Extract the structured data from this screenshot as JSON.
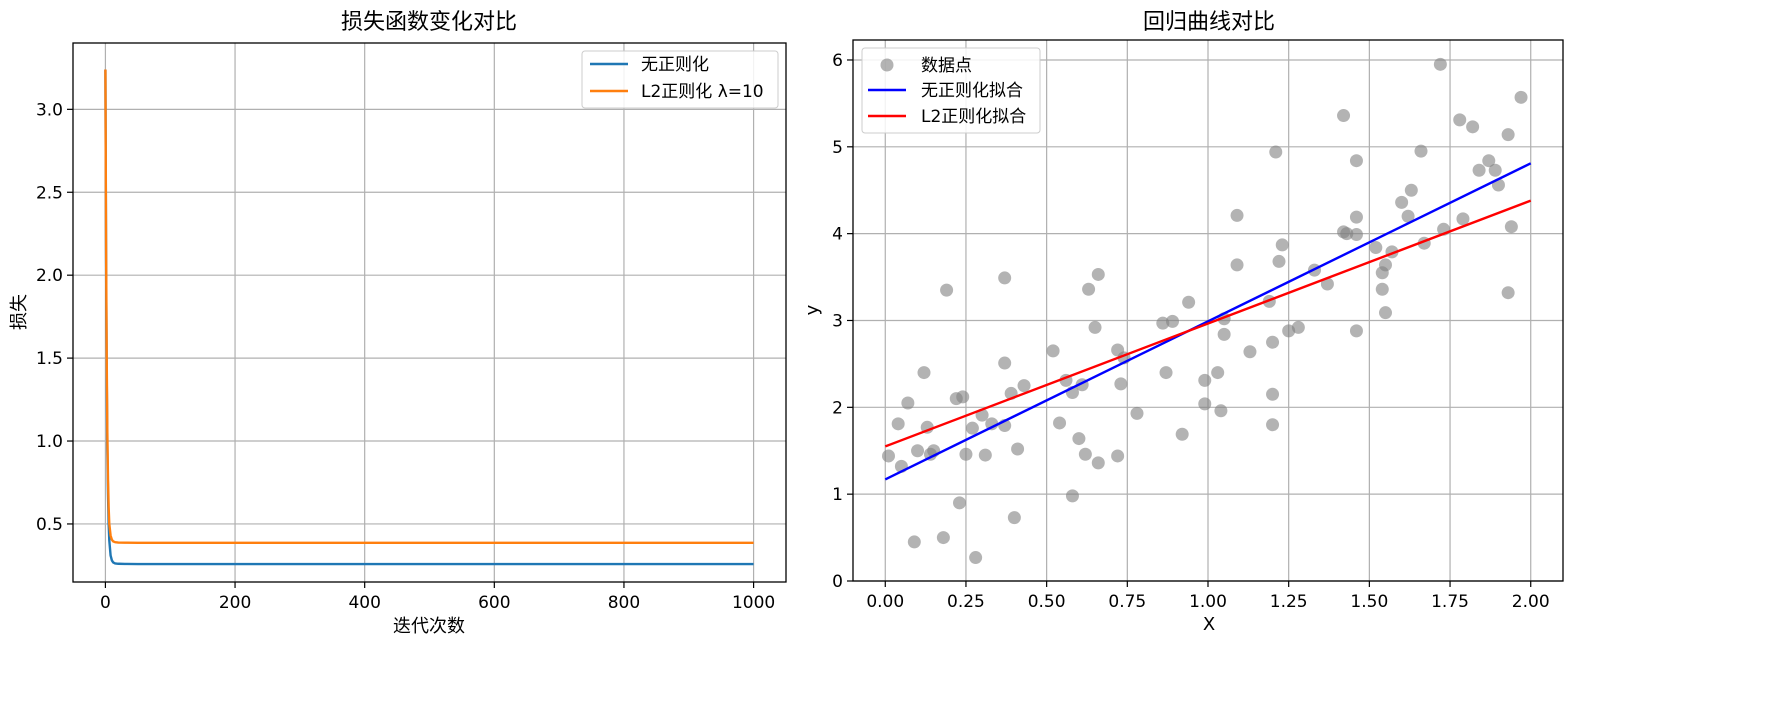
{
  "chart_data": [
    {
      "type": "line",
      "title": "损失函数变化对比",
      "xlabel": "迭代次数",
      "ylabel": "损失",
      "xlim": [
        -50,
        1050
      ],
      "ylim": [
        0.15,
        3.4
      ],
      "xticks": [
        0,
        200,
        400,
        600,
        800,
        1000
      ],
      "xtick_labels": [
        "0",
        "200",
        "400",
        "600",
        "800",
        "1000"
      ],
      "yticks": [
        0.5,
        1.0,
        1.5,
        2.0,
        2.5,
        3.0
      ],
      "ytick_labels": [
        "0.5",
        "1.0",
        "1.5",
        "2.0",
        "2.5",
        "3.0"
      ],
      "grid": true,
      "legend_position": "top-right",
      "series": [
        {
          "name": "无正则化",
          "color": "#1f77b4",
          "x": [
            0,
            1,
            2,
            3,
            4,
            5,
            6,
            8,
            10,
            12,
            15,
            20,
            30,
            50,
            100,
            200,
            1000
          ],
          "y": [
            3.24,
            2.1,
            1.4,
            0.95,
            0.68,
            0.5,
            0.4,
            0.31,
            0.28,
            0.268,
            0.262,
            0.26,
            0.259,
            0.258,
            0.258,
            0.258,
            0.258
          ]
        },
        {
          "name": "L2正则化 λ=10",
          "color": "#ff7f0e",
          "x": [
            0,
            1,
            2,
            3,
            4,
            5,
            6,
            8,
            10,
            12,
            15,
            20,
            30,
            50,
            100,
            200,
            1000
          ],
          "y": [
            3.24,
            2.2,
            1.5,
            1.05,
            0.77,
            0.6,
            0.5,
            0.43,
            0.405,
            0.395,
            0.39,
            0.388,
            0.387,
            0.386,
            0.386,
            0.386,
            0.386
          ]
        }
      ]
    },
    {
      "type": "scatter",
      "title": "回归曲线对比",
      "xlabel": "X",
      "ylabel": "y",
      "xlim": [
        -0.1,
        2.1
      ],
      "ylim": [
        0,
        6.23
      ],
      "xticks": [
        0,
        0.25,
        0.5,
        0.75,
        1.0,
        1.25,
        1.5,
        1.75,
        2.0
      ],
      "xtick_labels": [
        "0.00",
        "0.25",
        "0.50",
        "0.75",
        "1.00",
        "1.25",
        "1.50",
        "1.75",
        "2.00"
      ],
      "yticks": [
        0,
        1,
        2,
        3,
        4,
        5,
        6
      ],
      "ytick_labels": [
        "0",
        "1",
        "2",
        "3",
        "4",
        "5",
        "6"
      ],
      "grid": true,
      "legend_position": "top-left",
      "points": {
        "name": "数据点",
        "color": "#808080",
        "x": [
          0.01,
          0.04,
          0.05,
          0.07,
          0.09,
          0.1,
          0.12,
          0.13,
          0.14,
          0.15,
          0.18,
          0.19,
          0.22,
          0.23,
          0.24,
          0.25,
          0.27,
          0.28,
          0.3,
          0.31,
          0.33,
          0.37,
          0.37,
          0.37,
          0.39,
          0.4,
          0.41,
          0.43,
          0.52,
          0.54,
          0.56,
          0.58,
          0.58,
          0.6,
          0.61,
          0.62,
          0.63,
          0.65,
          0.66,
          0.66,
          0.72,
          0.72,
          0.73,
          0.74,
          0.78,
          0.86,
          0.87,
          0.89,
          0.92,
          0.94,
          0.99,
          0.99,
          1.03,
          1.04,
          1.05,
          1.05,
          1.09,
          1.09,
          1.13,
          1.19,
          1.2,
          1.2,
          1.2,
          1.21,
          1.22,
          1.23,
          1.25,
          1.28,
          1.33,
          1.37,
          1.42,
          1.42,
          1.43,
          1.46,
          1.46,
          1.46,
          1.46,
          1.52,
          1.54,
          1.54,
          1.55,
          1.55,
          1.57,
          1.6,
          1.62,
          1.63,
          1.66,
          1.67,
          1.72,
          1.73,
          1.78,
          1.79,
          1.82,
          1.84,
          1.87,
          1.89,
          1.9,
          1.93,
          1.93,
          1.94,
          1.97
        ],
        "y": [
          1.44,
          1.81,
          1.32,
          2.05,
          0.45,
          1.5,
          2.4,
          1.77,
          1.46,
          1.5,
          0.5,
          3.35,
          2.1,
          0.9,
          2.12,
          1.46,
          1.76,
          0.27,
          1.91,
          1.45,
          1.81,
          3.49,
          2.51,
          1.79,
          2.16,
          0.73,
          1.52,
          2.25,
          2.65,
          1.82,
          2.31,
          0.98,
          2.17,
          1.64,
          2.26,
          1.46,
          3.36,
          2.92,
          3.53,
          1.36,
          2.66,
          1.44,
          2.27,
          2.57,
          1.93,
          2.97,
          2.4,
          2.99,
          1.69,
          3.21,
          2.31,
          2.04,
          2.4,
          1.96,
          2.84,
          3.02,
          3.64,
          4.21,
          2.64,
          3.22,
          2.15,
          2.75,
          1.8,
          4.94,
          3.68,
          3.87,
          2.88,
          2.92,
          3.58,
          3.42,
          4.02,
          5.36,
          4.0,
          4.84,
          4.19,
          3.99,
          2.88,
          3.84,
          3.55,
          3.36,
          3.09,
          3.64,
          3.79,
          4.36,
          4.2,
          4.5,
          4.95,
          3.89,
          5.95,
          4.05,
          5.31,
          4.17,
          5.23,
          4.73,
          4.84,
          4.73,
          4.56,
          3.32,
          5.14,
          4.08,
          5.57
        ]
      },
      "series": [
        {
          "name": "无正则化拟合",
          "color": "#0000ff",
          "x": [
            0,
            2
          ],
          "y": [
            1.17,
            4.81
          ]
        },
        {
          "name": "L2正则化拟合",
          "color": "#ff0000",
          "x": [
            0,
            2
          ],
          "y": [
            1.55,
            4.38
          ]
        }
      ]
    }
  ]
}
